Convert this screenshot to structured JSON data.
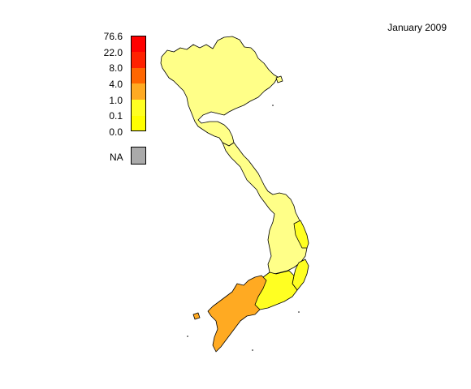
{
  "title": "January 2009",
  "legend": {
    "breaks": [
      "76.6",
      "22.0",
      "8.0",
      "4.0",
      "1.0",
      "0.1",
      "0.0"
    ],
    "colors": [
      "#ff0000",
      "#ff2200",
      "#ff6600",
      "#ffaa22",
      "#ffff22",
      "#ffff00",
      "#ffff88"
    ],
    "na_label": "NA",
    "na_color": "#aaaaaa"
  },
  "map": {
    "country": "Vietnam",
    "region_fill_colors": {
      "north": "#ffff88",
      "central": "#ffff88",
      "south_central_coast": "#ffff22",
      "mekong": "#ffaa22",
      "southeast": "#ffff22"
    }
  }
}
